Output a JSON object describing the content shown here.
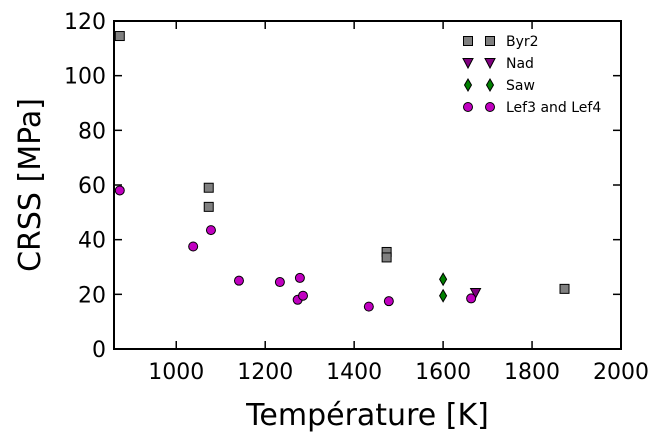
{
  "chart_data": {
    "type": "scatter",
    "title": "",
    "xlabel": "Température [K]",
    "ylabel": "CRSS [MPa]",
    "xlim": [
      860,
      2000
    ],
    "ylim": [
      0,
      120
    ],
    "xticks": [
      1000,
      1200,
      1400,
      1600,
      1800,
      2000
    ],
    "yticks": [
      0,
      20,
      40,
      60,
      80,
      100,
      120
    ],
    "grid": false,
    "legend_position": "top-right",
    "series": [
      {
        "name": "Byr2",
        "marker": "square",
        "color": "#808080",
        "points": [
          {
            "x": 873,
            "y": 114.5
          },
          {
            "x": 1073,
            "y": 59
          },
          {
            "x": 1073,
            "y": 52
          },
          {
            "x": 1473,
            "y": 35.5
          },
          {
            "x": 1473,
            "y": 33.5
          },
          {
            "x": 1873,
            "y": 22
          }
        ]
      },
      {
        "name": "Nad",
        "marker": "triangle-down",
        "color": "#800080",
        "points": [
          {
            "x": 1673,
            "y": 20.5
          }
        ]
      },
      {
        "name": "Saw",
        "marker": "diamond",
        "color": "#008000",
        "points": [
          {
            "x": 1600,
            "y": 25.5
          },
          {
            "x": 1600,
            "y": 19.5
          }
        ]
      },
      {
        "name": "Lef3 and Lef4",
        "marker": "circle",
        "color": "#c000c0",
        "points": [
          {
            "x": 873,
            "y": 58
          },
          {
            "x": 1038,
            "y": 37.5
          },
          {
            "x": 1078,
            "y": 43.5
          },
          {
            "x": 1141,
            "y": 25
          },
          {
            "x": 1233,
            "y": 24.5
          },
          {
            "x": 1278,
            "y": 26
          },
          {
            "x": 1273,
            "y": 18
          },
          {
            "x": 1285,
            "y": 19.5
          },
          {
            "x": 1433,
            "y": 15.5
          },
          {
            "x": 1478,
            "y": 17.5
          },
          {
            "x": 1663,
            "y": 18.5
          }
        ]
      }
    ]
  }
}
